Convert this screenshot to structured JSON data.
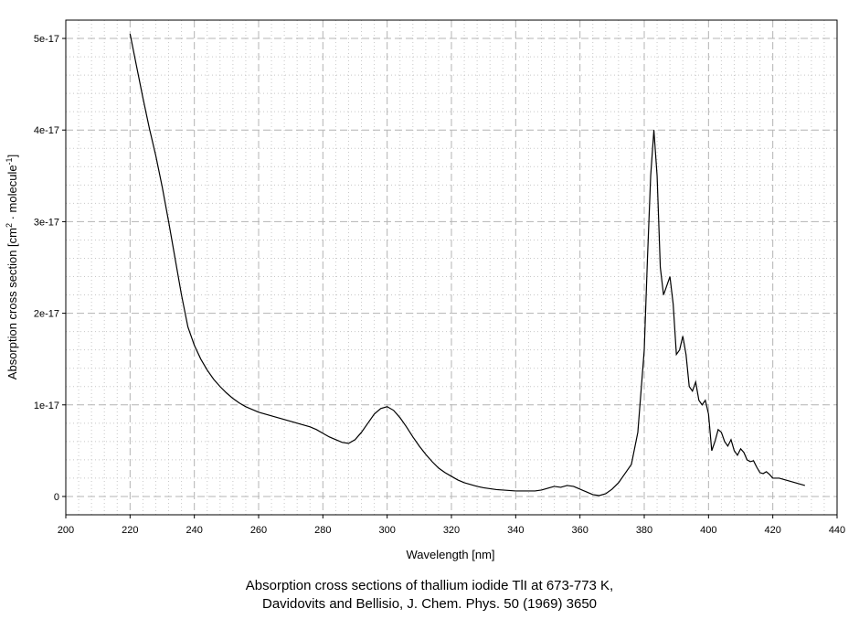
{
  "chart_data": {
    "type": "line",
    "title": "",
    "xlabel": "Wavelength [nm]",
    "ylabel_main": "Absorption cross section [cm",
    "ylabel_sup1": "2",
    "ylabel_mid": " · molecule",
    "ylabel_sup2": "-1",
    "ylabel_end": "]",
    "xlim": [
      200,
      440
    ],
    "ylim": [
      -2e-18,
      5.2e-17
    ],
    "x_ticks": [
      200,
      220,
      240,
      260,
      280,
      300,
      320,
      340,
      360,
      380,
      400,
      420,
      440
    ],
    "x_tick_labels": [
      "200",
      "220",
      "240",
      "260",
      "280",
      "300",
      "320",
      "340",
      "360",
      "380",
      "400",
      "420",
      "440"
    ],
    "y_ticks": [
      0,
      1e-17,
      2e-17,
      3e-17,
      4e-17,
      5e-17
    ],
    "y_tick_labels": [
      "0",
      "1e-17",
      "2e-17",
      "3e-17",
      "4e-17",
      "5e-17"
    ],
    "grid": true,
    "line_color": "#000000",
    "series": [
      {
        "x": [
          220,
          222,
          224,
          226,
          228,
          230,
          232,
          234,
          236,
          238,
          240,
          242,
          244,
          246,
          248,
          250,
          252,
          254,
          256,
          258,
          260,
          262,
          264,
          266,
          268,
          270,
          272,
          274,
          276,
          278,
          280,
          282,
          284,
          286,
          288,
          290,
          292,
          294,
          296,
          298,
          300,
          302,
          304,
          306,
          308,
          310,
          312,
          314,
          316,
          318,
          320,
          322,
          324,
          326,
          328,
          330,
          332,
          334,
          336,
          338,
          340,
          342,
          344,
          346,
          348,
          350,
          352,
          354,
          356,
          358,
          360,
          362,
          364,
          366,
          368,
          370,
          372,
          374,
          376,
          378,
          380,
          381,
          382,
          383,
          384,
          385,
          386,
          387,
          388,
          389,
          390,
          391,
          392,
          393,
          394,
          395,
          396,
          397,
          398,
          399,
          400,
          401,
          402,
          403,
          404,
          405,
          406,
          407,
          408,
          409,
          410,
          411,
          412,
          413,
          414,
          415,
          416,
          417,
          418,
          419,
          420,
          422,
          424,
          426,
          428,
          430
        ],
        "y": [
          5.05e-17,
          4.7e-17,
          4.35e-17,
          4.02e-17,
          3.72e-17,
          3.38e-17,
          3e-17,
          2.6e-17,
          2.2e-17,
          1.85e-17,
          1.65e-17,
          1.5e-17,
          1.38e-17,
          1.28e-17,
          1.2e-17,
          1.13e-17,
          1.07e-17,
          1.02e-17,
          9.8e-18,
          9.5e-18,
          9.2e-18,
          9e-18,
          8.8e-18,
          8.6e-18,
          8.4e-18,
          8.2e-18,
          8e-18,
          7.8e-18,
          7.6e-18,
          7.3e-18,
          6.9e-18,
          6.5e-18,
          6.2e-18,
          5.9e-18,
          5.8e-18,
          6.2e-18,
          7e-18,
          8e-18,
          9e-18,
          9.6e-18,
          9.8e-18,
          9.4e-18,
          8.6e-18,
          7.6e-18,
          6.5e-18,
          5.5e-18,
          4.6e-18,
          3.8e-18,
          3.1e-18,
          2.6e-18,
          2.2e-18,
          1.8e-18,
          1.5e-18,
          1.3e-18,
          1.1e-18,
          9.5e-19,
          8.5e-19,
          7.5e-19,
          7e-19,
          6.5e-19,
          6e-19,
          6e-19,
          6e-19,
          6e-19,
          7e-19,
          9e-19,
          1.1e-18,
          1e-18,
          1.2e-18,
          1.1e-18,
          8e-19,
          5e-19,
          2e-19,
          1e-19,
          3e-19,
          8e-19,
          1.5e-18,
          2.5e-18,
          3.5e-18,
          7e-18,
          1.6e-17,
          2.6e-17,
          3.5e-17,
          4e-17,
          3.5e-17,
          2.5e-17,
          2.2e-17,
          2.3e-17,
          2.4e-17,
          2.1e-17,
          1.55e-17,
          1.6e-17,
          1.75e-17,
          1.55e-17,
          1.2e-17,
          1.15e-17,
          1.25e-17,
          1.05e-17,
          1e-17,
          1.05e-17,
          9e-18,
          5e-18,
          6e-18,
          7.3e-18,
          7e-18,
          6e-18,
          5.5e-18,
          6.2e-18,
          5e-18,
          4.5e-18,
          5.2e-18,
          4.8e-18,
          4e-18,
          3.8e-18,
          3.9e-18,
          3.2e-18,
          2.6e-18,
          2.5e-18,
          2.7e-18,
          2.4e-18,
          2e-18,
          2e-18,
          1.8e-18,
          1.6e-18,
          1.4e-18,
          1.2e-18
        ]
      }
    ]
  },
  "caption": {
    "line1": "Absorption cross sections of thallium iodide TlI at 673-773 K,",
    "line2": "Davidovits and Bellisio, J. Chem. Phys. 50 (1969) 3650"
  }
}
